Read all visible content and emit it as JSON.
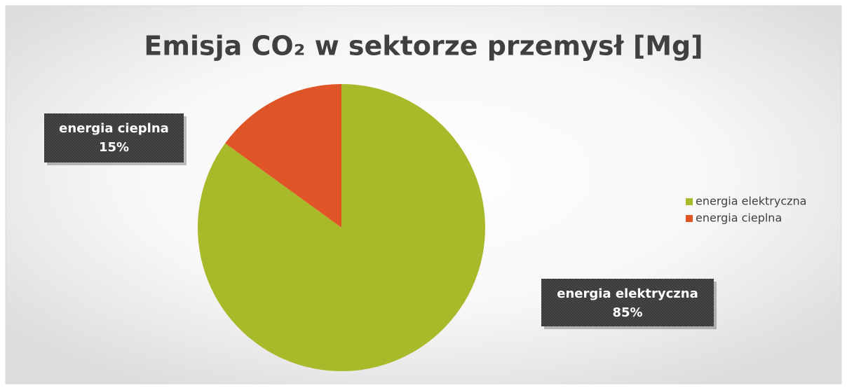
{
  "chart_data": {
    "type": "pie",
    "title": "Emisja CO₂ w sektorze przemysł [Mg]",
    "categories": [
      "energia elektryczna",
      "energia cieplna"
    ],
    "values": [
      85,
      15
    ],
    "value_labels": [
      "85%",
      "15%"
    ],
    "colors": [
      "#a8b92a",
      "#e05527"
    ],
    "legend": "right"
  }
}
